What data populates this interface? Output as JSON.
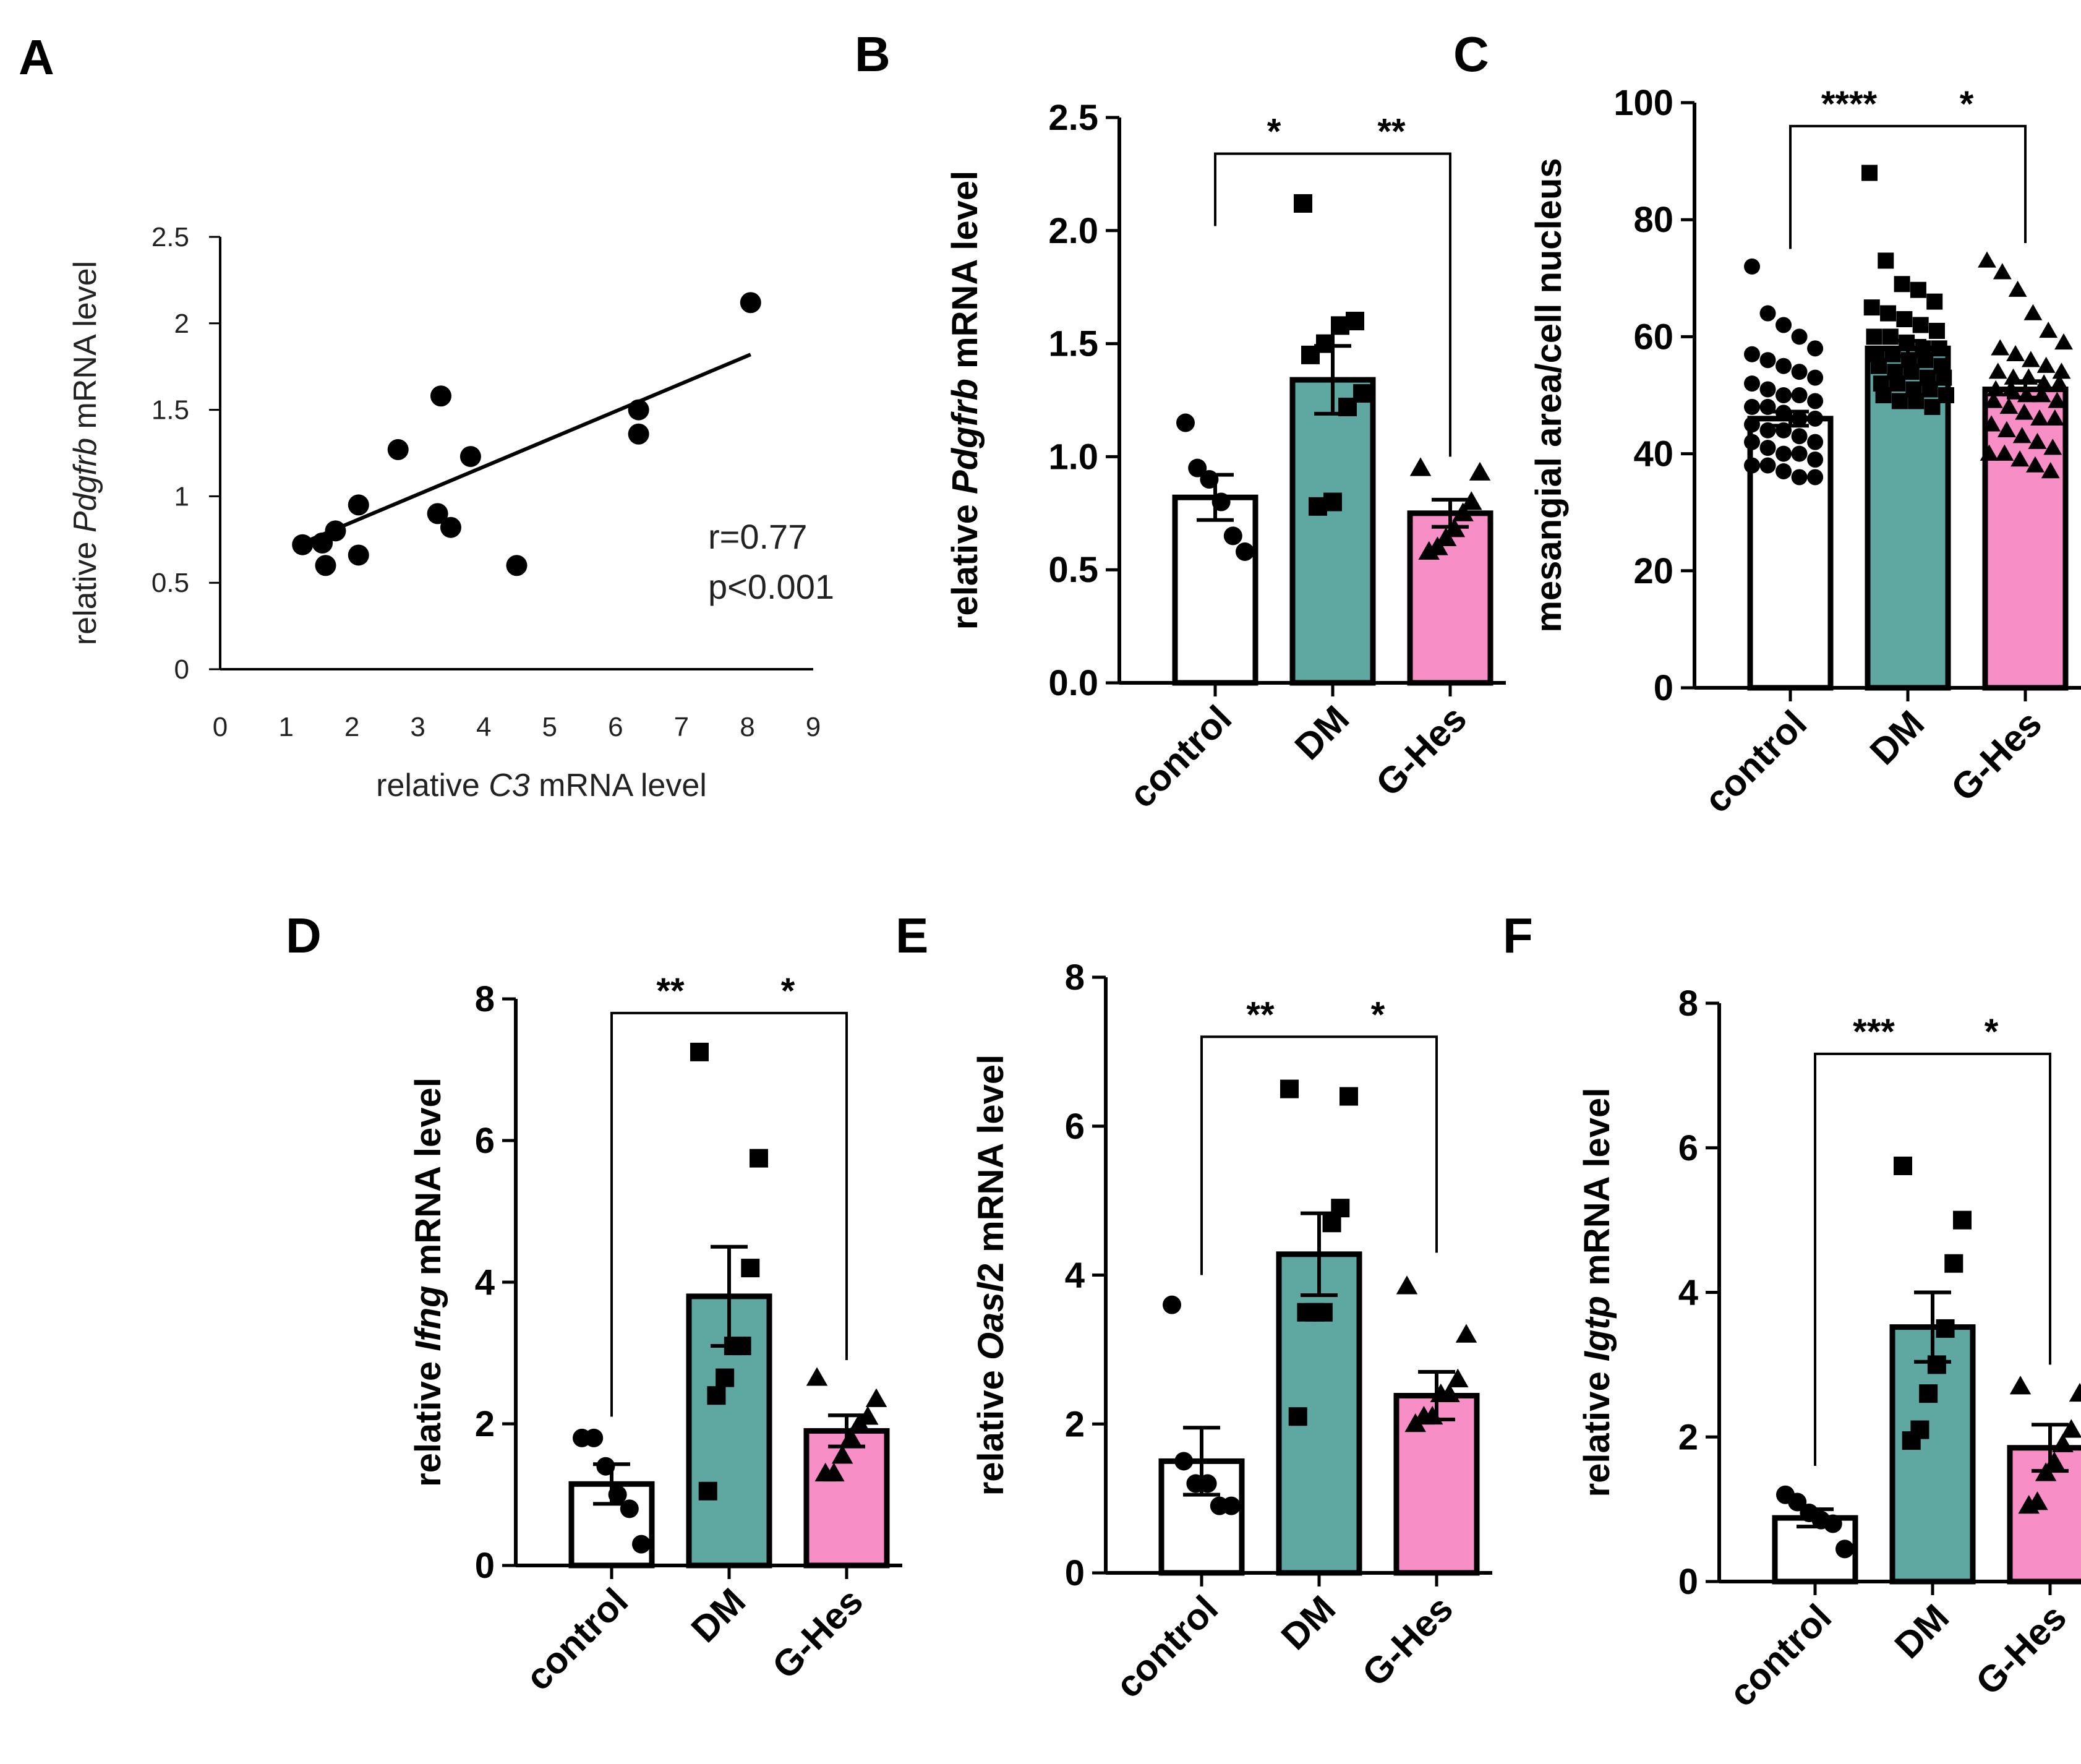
{
  "colors": {
    "control": "#ffffff",
    "DM": "#5fa8a2",
    "G-Hes": "#f78fc6"
  },
  "chart_data": [
    {
      "id": "A",
      "type": "scatter",
      "panel_label": "A",
      "xlabel_parts": [
        "relative ",
        "C3",
        " mRNA level"
      ],
      "ylabel_parts": [
        "relative ",
        "Pdgfrb",
        " mRNA level"
      ],
      "xlim": [
        0,
        9
      ],
      "ylim": [
        0,
        2.5
      ],
      "xticks": [
        0,
        1,
        2,
        3,
        4,
        5,
        6,
        7,
        8,
        9
      ],
      "yticks": [
        0,
        0.5,
        1,
        1.5,
        2,
        2.5
      ],
      "ytick_labels": [
        "0",
        "0.5",
        "1",
        "1.5",
        "2",
        "2.5"
      ],
      "points": [
        [
          1.25,
          0.72
        ],
        [
          1.55,
          0.73
        ],
        [
          1.6,
          0.6
        ],
        [
          1.75,
          0.8
        ],
        [
          2.1,
          0.95
        ],
        [
          2.1,
          0.66
        ],
        [
          2.7,
          1.27
        ],
        [
          3.3,
          0.9
        ],
        [
          3.35,
          1.58
        ],
        [
          3.5,
          0.82
        ],
        [
          3.8,
          1.23
        ],
        [
          4.5,
          0.6
        ],
        [
          6.35,
          1.5
        ],
        [
          6.35,
          1.36
        ],
        [
          8.05,
          2.12
        ]
      ],
      "fit_line": {
        "x": [
          1.25,
          8.05
        ],
        "y": [
          0.73,
          1.82
        ]
      },
      "r_text": "r=0.77",
      "p_text": "p<0.001"
    },
    {
      "id": "B",
      "type": "bar",
      "panel_label": "B",
      "categories": [
        "control",
        "DM",
        "G-Hes"
      ],
      "ylabel_parts": [
        "relative ",
        "Pdgfrb",
        " mRNA level"
      ],
      "ylim": [
        0,
        2.5
      ],
      "yticks": [
        0,
        0.5,
        1.0,
        1.5,
        2.0,
        2.5
      ],
      "ytick_labels": [
        "0.0",
        "0.5",
        "1.0",
        "1.5",
        "2.0",
        "2.5"
      ],
      "means": [
        0.82,
        1.34,
        0.75
      ],
      "sem": [
        0.1,
        0.15,
        0.06
      ],
      "points": [
        [
          1.15,
          0.95,
          0.9,
          0.8,
          0.65,
          0.58
        ],
        [
          2.12,
          1.6,
          1.58,
          1.5,
          1.45,
          1.28,
          1.22,
          0.8,
          0.78
        ],
        [
          0.95,
          0.93,
          0.8,
          0.75,
          0.68,
          0.64,
          0.6,
          0.58
        ]
      ],
      "brackets": [
        {
          "from": 0,
          "to": 1,
          "y": 2.34,
          "drop_from": 2.02,
          "drop_to": 2.34,
          "label": "*"
        },
        {
          "from": 1,
          "to": 2,
          "y": 2.34,
          "drop_from": 2.34,
          "drop_to": 1.0,
          "label": "**"
        }
      ]
    },
    {
      "id": "C",
      "type": "bar",
      "panel_label": "C",
      "categories": [
        "control",
        "DM",
        "G-Hes"
      ],
      "ylabel_parts": [
        "mesangial area/cell nucleus"
      ],
      "ylim": [
        0,
        100
      ],
      "yticks": [
        0,
        20,
        40,
        60,
        80,
        100
      ],
      "ytick_labels": [
        "0",
        "20",
        "40",
        "60",
        "80",
        "100"
      ],
      "means": [
        46,
        58,
        51
      ],
      "sem": [
        1.2,
        1.3,
        1.4
      ],
      "points": [
        [
          72,
          64,
          62,
          60,
          58,
          57,
          56,
          55,
          54,
          53,
          52,
          51,
          50,
          50,
          49,
          48,
          48,
          47,
          46,
          46,
          45,
          44,
          44,
          43,
          42,
          42,
          41,
          40,
          40,
          39,
          38,
          38,
          37,
          36,
          36
        ],
        [
          88,
          73,
          69,
          68,
          66,
          65,
          64,
          63,
          62,
          61,
          60,
          60,
          59,
          58,
          58,
          57,
          57,
          56,
          56,
          55,
          55,
          54,
          54,
          53,
          53,
          52,
          52,
          51,
          51,
          50,
          50,
          49,
          49,
          48
        ],
        [
          73,
          71,
          68,
          64,
          61,
          59,
          58,
          57,
          56,
          55,
          54,
          54,
          53,
          53,
          52,
          52,
          51,
          51,
          50,
          50,
          49,
          49,
          48,
          47,
          46,
          46,
          45,
          44,
          43,
          42,
          41,
          40,
          40,
          39,
          38,
          37
        ]
      ],
      "brackets": [
        {
          "from": 0,
          "to": 1,
          "y": 96,
          "drop_from": 75,
          "drop_to": 96,
          "label": "****"
        },
        {
          "from": 1,
          "to": 2,
          "y": 96,
          "drop_from": 96,
          "drop_to": 76,
          "label": "*"
        }
      ]
    },
    {
      "id": "D",
      "type": "bar",
      "panel_label": "D",
      "categories": [
        "control",
        "DM",
        "G-Hes"
      ],
      "ylabel_parts": [
        "relative ",
        "Ifng",
        " mRNA level"
      ],
      "ylim": [
        0,
        8
      ],
      "yticks": [
        0,
        2,
        4,
        6,
        8
      ],
      "ytick_labels": [
        "0",
        "2",
        "4",
        "6",
        "8"
      ],
      "means": [
        1.15,
        3.8,
        1.9
      ],
      "sem": [
        0.28,
        0.7,
        0.22
      ],
      "points": [
        [
          1.8,
          1.8,
          1.4,
          1.0,
          0.8,
          0.3
        ],
        [
          7.25,
          5.75,
          4.2,
          3.1,
          3.1,
          2.65,
          2.4,
          1.05
        ],
        [
          2.65,
          2.35,
          2.1,
          2.0,
          1.8,
          1.55,
          1.3,
          1.3
        ]
      ],
      "brackets": [
        {
          "from": 0,
          "to": 1,
          "y": 7.8,
          "drop_from": 2.1,
          "drop_to": 7.8,
          "label": "**"
        },
        {
          "from": 1,
          "to": 2,
          "y": 7.8,
          "drop_from": 7.8,
          "drop_to": 2.9,
          "label": "*"
        }
      ]
    },
    {
      "id": "E",
      "type": "bar",
      "panel_label": "E",
      "categories": [
        "control",
        "DM",
        "G-Hes"
      ],
      "ylabel_parts": [
        "relative ",
        "Oasl",
        "2 mRNA level"
      ],
      "ylim": [
        0,
        8
      ],
      "yticks": [
        0,
        2,
        4,
        6,
        8
      ],
      "ytick_labels": [
        "0",
        "2",
        "4",
        "6",
        "8"
      ],
      "means": [
        1.5,
        4.28,
        2.38
      ],
      "sem": [
        0.45,
        0.55,
        0.32
      ],
      "points": [
        [
          3.6,
          1.5,
          1.2,
          1.2,
          0.9,
          0.9
        ],
        [
          6.5,
          6.4,
          4.9,
          4.7,
          3.5,
          3.5,
          3.5,
          2.1
        ],
        [
          3.85,
          3.2,
          2.6,
          2.4,
          2.4,
          2.1,
          2.1,
          2.0
        ]
      ],
      "brackets": [
        {
          "from": 0,
          "to": 1,
          "y": 7.2,
          "drop_from": 4.0,
          "drop_to": 7.2,
          "label": "**"
        },
        {
          "from": 1,
          "to": 2,
          "y": 7.2,
          "drop_from": 7.2,
          "drop_to": 4.3,
          "label": "*"
        }
      ]
    },
    {
      "id": "F",
      "type": "bar",
      "panel_label": "F",
      "categories": [
        "control",
        "DM",
        "G-Hes"
      ],
      "ylabel_parts": [
        "relative ",
        "Igtp",
        " mRNA level"
      ],
      "ylim": [
        0,
        8
      ],
      "yticks": [
        0,
        2,
        4,
        6,
        8
      ],
      "ytick_labels": [
        "0",
        "2",
        "4",
        "6",
        "8"
      ],
      "means": [
        0.88,
        3.52,
        1.85
      ],
      "sem": [
        0.12,
        0.48,
        0.32
      ],
      "points": [
        [
          1.2,
          1.1,
          0.95,
          0.85,
          0.8,
          0.45
        ],
        [
          5.75,
          5.0,
          4.4,
          3.5,
          3.0,
          2.6,
          2.1,
          1.95
        ],
        [
          2.7,
          2.6,
          2.1,
          1.9,
          1.65,
          1.5,
          1.1,
          1.05
        ]
      ],
      "brackets": [
        {
          "from": 0,
          "to": 1,
          "y": 7.3,
          "drop_from": 1.6,
          "drop_to": 7.3,
          "label": "***"
        },
        {
          "from": 1,
          "to": 2,
          "y": 7.3,
          "drop_from": 7.3,
          "drop_to": 3.0,
          "label": "*"
        }
      ]
    }
  ]
}
